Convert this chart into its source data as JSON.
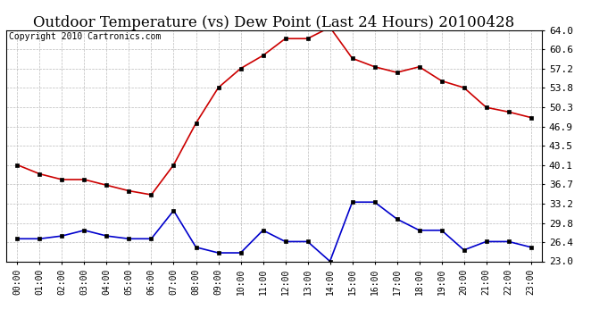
{
  "title": "Outdoor Temperature (vs) Dew Point (Last 24 Hours) 20100428",
  "copyright": "Copyright 2010 Cartronics.com",
  "hours": [
    "00:00",
    "01:00",
    "02:00",
    "03:00",
    "04:00",
    "05:00",
    "06:00",
    "07:00",
    "08:00",
    "09:00",
    "10:00",
    "11:00",
    "12:00",
    "13:00",
    "14:00",
    "15:00",
    "16:00",
    "17:00",
    "18:00",
    "19:00",
    "20:00",
    "21:00",
    "22:00",
    "23:00"
  ],
  "temp": [
    40.1,
    38.5,
    37.5,
    37.5,
    36.5,
    35.5,
    34.8,
    40.1,
    47.5,
    53.8,
    57.2,
    59.5,
    62.5,
    62.5,
    64.5,
    59.0,
    57.5,
    56.5,
    57.5,
    55.0,
    53.8,
    50.3,
    49.5,
    48.5
  ],
  "dew": [
    27.0,
    27.0,
    27.5,
    28.5,
    27.5,
    27.0,
    27.0,
    32.0,
    25.5,
    24.5,
    24.5,
    28.5,
    26.5,
    26.5,
    23.0,
    33.5,
    33.5,
    30.5,
    28.5,
    28.5,
    25.0,
    26.5,
    26.5,
    25.5
  ],
  "temp_color": "#cc0000",
  "dew_color": "#0000cc",
  "bg_color": "#ffffff",
  "grid_color": "#bbbbbb",
  "y_min": 23.0,
  "y_max": 64.0,
  "y_ticks": [
    23.0,
    26.4,
    29.8,
    33.2,
    36.7,
    40.1,
    43.5,
    46.9,
    50.3,
    53.8,
    57.2,
    60.6,
    64.0
  ],
  "title_fontsize": 12,
  "copyright_fontsize": 7,
  "marker": "s",
  "marker_size": 3,
  "linewidth": 1.2
}
